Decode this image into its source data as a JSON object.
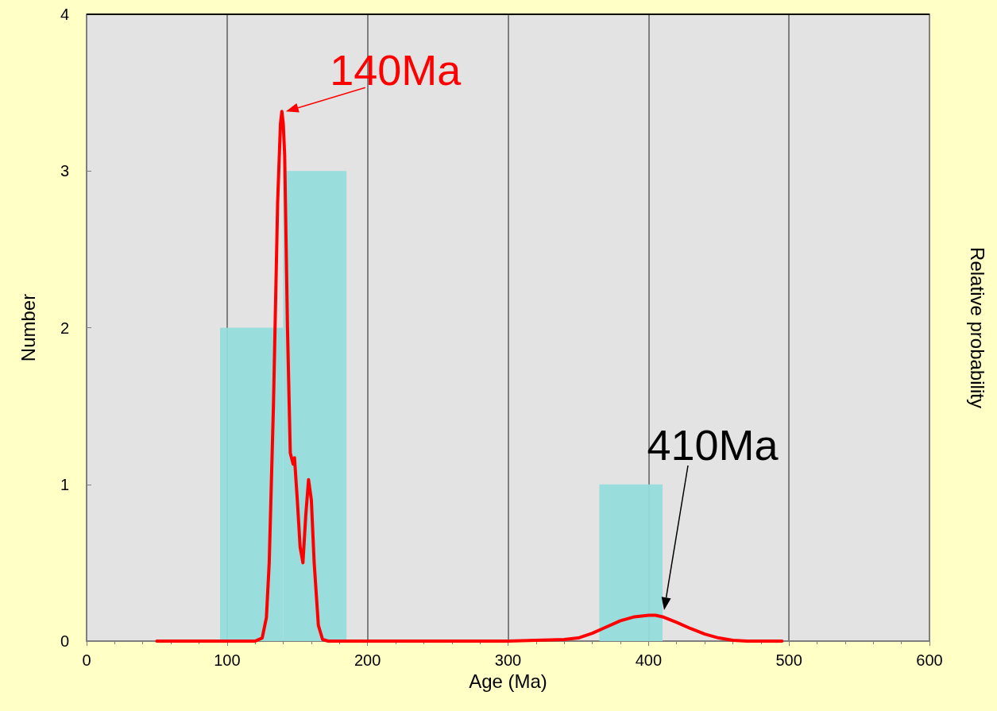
{
  "chart_data": {
    "type": "histogram",
    "xlabel": "Age (Ma)",
    "ylabel": "Number",
    "y2label": "Relative probability",
    "bins": [
      95,
      140,
      185,
      230,
      275,
      320,
      365,
      410
    ],
    "values": [
      2,
      3,
      0,
      0,
      0,
      0,
      1
    ],
    "color": "#96dcdc",
    "series": [
      {
        "type": "line",
        "color": "#ff0000",
        "x": [
          50,
          100,
          120,
          125,
          128,
          130,
          133,
          136,
          138,
          139,
          140,
          141,
          143,
          145,
          147,
          148,
          150,
          152,
          154,
          156,
          158,
          160,
          162,
          165,
          168,
          172,
          200,
          300,
          340,
          350,
          360,
          370,
          380,
          390,
          400,
          405,
          410,
          420,
          430,
          440,
          450,
          460,
          470,
          495
        ],
        "values": [
          0,
          0,
          0,
          0.02,
          0.15,
          0.5,
          1.5,
          2.8,
          3.3,
          3.38,
          3.3,
          3.1,
          2.0,
          1.2,
          1.13,
          1.17,
          0.9,
          0.6,
          0.5,
          0.8,
          1.03,
          0.9,
          0.5,
          0.1,
          0.01,
          0,
          0,
          0,
          0.01,
          0.02,
          0.05,
          0.09,
          0.13,
          0.155,
          0.165,
          0.165,
          0.155,
          0.12,
          0.08,
          0.045,
          0.02,
          0.005,
          0,
          0
        ]
      }
    ],
    "annotations": [
      {
        "text": "140Ma",
        "x": 139,
        "y": 3.38
      },
      "410Ma"
    ],
    "xlim": [
      0,
      600
    ],
    "xticks": [
      0,
      100,
      200,
      300,
      400,
      500,
      600
    ],
    "ylim": [
      0,
      4
    ],
    "yticks": [
      0,
      1,
      2,
      3,
      4
    ],
    "grid": "x"
  }
}
